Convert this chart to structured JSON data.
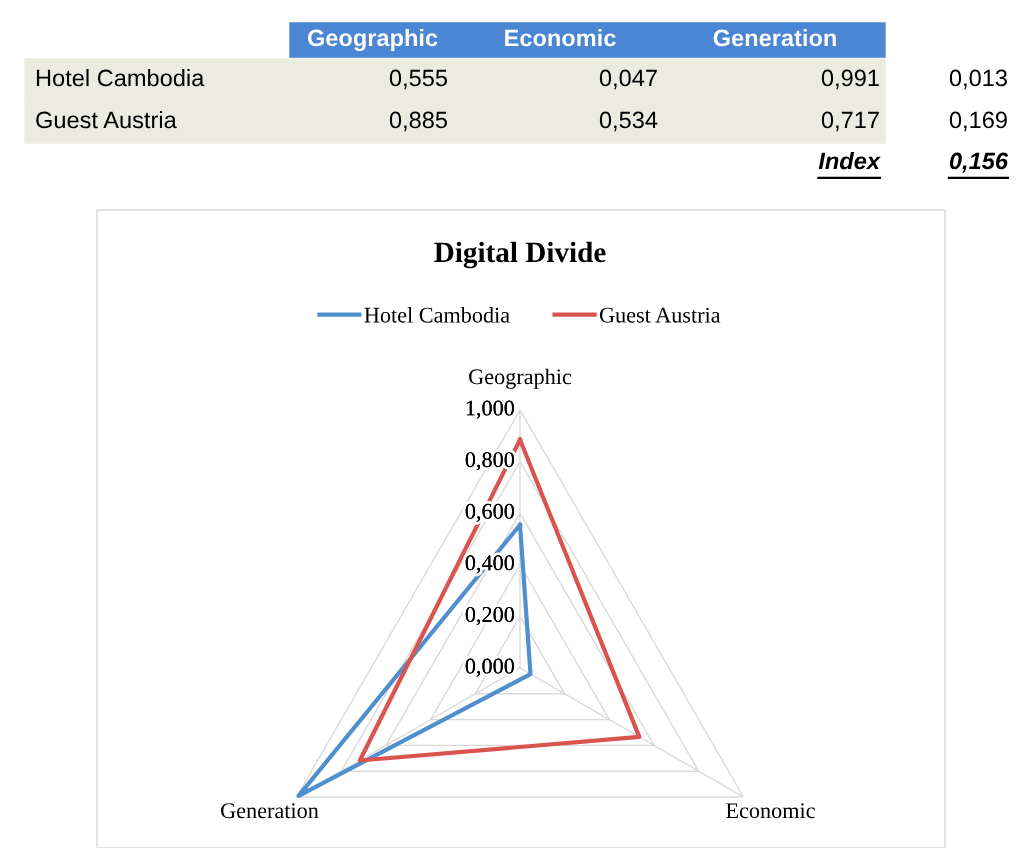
{
  "chart_data": {
    "type": "radar",
    "title": "Digital Divide",
    "categories": [
      "Geographic",
      "Economic",
      "Generation"
    ],
    "series": [
      {
        "name": "Hotel Cambodia",
        "color": "#4f8fcf",
        "values": [
          0.555,
          0.047,
          0.991
        ]
      },
      {
        "name": "Guest Austria",
        "color": "#d9534f",
        "values": [
          0.885,
          0.534,
          0.717
        ]
      }
    ],
    "ylim": [
      0,
      1
    ],
    "yticks": [
      {
        "value": 0,
        "label": "0,000"
      },
      {
        "value": 0.2,
        "label": "0,200"
      },
      {
        "value": 0.4,
        "label": "0,400"
      },
      {
        "value": 0.6,
        "label": "0,600"
      },
      {
        "value": 0.8,
        "label": "0,800"
      },
      {
        "value": 1,
        "label": "1,000"
      }
    ],
    "grid": true,
    "legend": "top",
    "annotations": [
      "0,555",
      "0,047",
      "0,991",
      "0,013",
      "0,885",
      "0,534",
      "0,717",
      "0,169",
      "Index",
      "0,156"
    ]
  }
}
